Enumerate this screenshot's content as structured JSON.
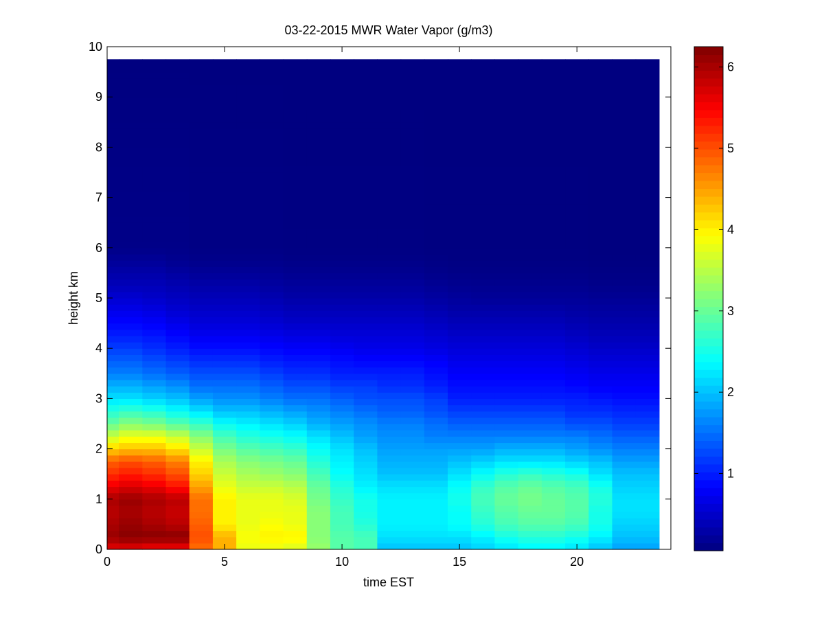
{
  "chart_data": {
    "type": "heatmap",
    "title": "03-22-2015 MWR Water Vapor (g/m3)",
    "xlabel": "time EST",
    "ylabel": "height km",
    "xlim": [
      0,
      24
    ],
    "ylim": [
      0,
      10
    ],
    "xticks": [
      "0",
      "5",
      "10",
      "15",
      "20"
    ],
    "yticks": [
      "0",
      "1",
      "2",
      "3",
      "4",
      "5",
      "6",
      "7",
      "8",
      "9",
      "10"
    ],
    "colorbar": {
      "colormap": "jet",
      "range": [
        0.05,
        6.25
      ],
      "ticks": [
        "1",
        "2",
        "3",
        "4",
        "5",
        "6"
      ]
    },
    "x": [
      0,
      1,
      2,
      3,
      4,
      5,
      6,
      7,
      8,
      9,
      10,
      11,
      12,
      13,
      14,
      15,
      16,
      17,
      18,
      19,
      20,
      21,
      22,
      23
    ],
    "x_range": [
      0,
      23.5
    ],
    "height_top_km": 9.75,
    "profile_heights_km": [
      0,
      0.25,
      0.5,
      0.75,
      1.0,
      1.25,
      1.5,
      1.75,
      2.0,
      2.25,
      2.5,
      2.75,
      3.0,
      3.25,
      3.5,
      3.75,
      4.0,
      4.25,
      4.5,
      4.75,
      5.0,
      5.25,
      5.5,
      5.75,
      6.0,
      10.0
    ],
    "profiles_g_m3": [
      [
        5.6,
        6.1,
        6.0,
        5.9,
        6.0,
        5.6,
        5.2,
        4.9,
        4.2,
        3.6,
        3.0,
        2.6,
        2.2,
        1.9,
        1.6,
        1.4,
        1.2,
        1.0,
        0.85,
        0.7,
        0.55,
        0.4,
        0.3,
        0.2,
        0.1,
        0.05
      ],
      [
        5.6,
        6.2,
        6.1,
        6.0,
        6.1,
        5.7,
        5.3,
        5.0,
        4.3,
        3.8,
        3.2,
        2.7,
        2.2,
        1.9,
        1.6,
        1.4,
        1.2,
        1.0,
        0.85,
        0.7,
        0.55,
        0.4,
        0.3,
        0.2,
        0.1,
        0.05
      ],
      [
        5.5,
        6.2,
        6.0,
        5.9,
        6.0,
        5.6,
        5.2,
        4.9,
        4.3,
        3.8,
        3.1,
        2.6,
        2.1,
        1.8,
        1.5,
        1.3,
        1.1,
        0.95,
        0.8,
        0.65,
        0.5,
        0.4,
        0.3,
        0.2,
        0.1,
        0.05
      ],
      [
        5.5,
        6.2,
        5.9,
        5.8,
        5.9,
        5.4,
        5.0,
        4.7,
        4.1,
        3.6,
        2.9,
        2.4,
        2.0,
        1.7,
        1.4,
        1.2,
        1.0,
        0.85,
        0.7,
        0.55,
        0.45,
        0.35,
        0.25,
        0.15,
        0.1,
        0.05
      ],
      [
        4.8,
        5.0,
        4.9,
        4.8,
        4.8,
        4.5,
        4.2,
        4.0,
        3.6,
        3.2,
        2.7,
        2.2,
        1.8,
        1.5,
        1.3,
        1.1,
        0.9,
        0.75,
        0.6,
        0.5,
        0.4,
        0.3,
        0.2,
        0.12,
        0.08,
        0.05
      ],
      [
        4.4,
        4.4,
        4.0,
        4.0,
        4.0,
        3.8,
        3.6,
        3.4,
        3.1,
        2.8,
        2.4,
        2.0,
        1.7,
        1.5,
        1.3,
        1.1,
        0.9,
        0.75,
        0.6,
        0.5,
        0.4,
        0.3,
        0.2,
        0.12,
        0.08,
        0.05
      ],
      [
        3.8,
        3.9,
        3.8,
        3.8,
        3.8,
        3.6,
        3.4,
        3.2,
        2.9,
        2.6,
        2.3,
        2.0,
        1.7,
        1.5,
        1.3,
        1.1,
        0.9,
        0.75,
        0.6,
        0.5,
        0.4,
        0.3,
        0.2,
        0.12,
        0.08,
        0.05
      ],
      [
        3.8,
        4.0,
        3.9,
        3.8,
        3.8,
        3.6,
        3.3,
        3.1,
        2.8,
        2.5,
        2.2,
        1.9,
        1.6,
        1.4,
        1.2,
        1.0,
        0.85,
        0.7,
        0.55,
        0.45,
        0.35,
        0.25,
        0.18,
        0.12,
        0.08,
        0.05
      ],
      [
        3.7,
        4.0,
        3.8,
        3.8,
        3.7,
        3.5,
        3.2,
        3.0,
        2.7,
        2.4,
        2.1,
        1.8,
        1.5,
        1.3,
        1.1,
        0.95,
        0.8,
        0.65,
        0.5,
        0.4,
        0.3,
        0.22,
        0.15,
        0.1,
        0.07,
        0.05
      ],
      [
        3.3,
        3.2,
        3.2,
        3.2,
        3.1,
        3.0,
        2.8,
        2.6,
        2.4,
        2.2,
        1.9,
        1.7,
        1.5,
        1.3,
        1.1,
        0.95,
        0.8,
        0.65,
        0.5,
        0.4,
        0.3,
        0.22,
        0.15,
        0.1,
        0.07,
        0.05
      ],
      [
        2.9,
        2.9,
        2.8,
        2.8,
        2.7,
        2.6,
        2.4,
        2.3,
        2.2,
        2.0,
        1.8,
        1.6,
        1.4,
        1.2,
        1.0,
        0.9,
        0.75,
        0.6,
        0.5,
        0.4,
        0.3,
        0.22,
        0.15,
        0.1,
        0.07,
        0.05
      ],
      [
        2.8,
        2.8,
        2.6,
        2.5,
        2.5,
        2.3,
        2.2,
        2.1,
        2.0,
        1.8,
        1.7,
        1.5,
        1.3,
        1.2,
        1.0,
        0.85,
        0.7,
        0.6,
        0.5,
        0.4,
        0.3,
        0.22,
        0.15,
        0.1,
        0.07,
        0.05
      ],
      [
        2.0,
        2.2,
        2.3,
        2.3,
        2.3,
        2.2,
        2.0,
        1.9,
        1.8,
        1.7,
        1.6,
        1.4,
        1.3,
        1.1,
        1.0,
        0.85,
        0.7,
        0.6,
        0.5,
        0.4,
        0.3,
        0.22,
        0.15,
        0.1,
        0.07,
        0.05
      ],
      [
        2.0,
        2.2,
        2.3,
        2.3,
        2.3,
        2.2,
        2.0,
        1.9,
        1.8,
        1.7,
        1.6,
        1.4,
        1.3,
        1.1,
        1.0,
        0.85,
        0.7,
        0.6,
        0.5,
        0.4,
        0.3,
        0.22,
        0.15,
        0.1,
        0.07,
        0.05
      ],
      [
        2.0,
        2.2,
        2.3,
        2.3,
        2.3,
        2.2,
        2.0,
        1.9,
        1.8,
        1.6,
        1.5,
        1.3,
        1.2,
        1.0,
        0.9,
        0.8,
        0.65,
        0.55,
        0.45,
        0.35,
        0.25,
        0.18,
        0.12,
        0.08,
        0.06,
        0.05
      ],
      [
        2.0,
        2.2,
        2.4,
        2.4,
        2.5,
        2.4,
        2.2,
        2.0,
        1.8,
        1.6,
        1.4,
        1.2,
        1.0,
        0.9,
        0.8,
        0.7,
        0.6,
        0.5,
        0.4,
        0.3,
        0.22,
        0.15,
        0.1,
        0.07,
        0.06,
        0.05
      ],
      [
        2.1,
        2.3,
        2.6,
        2.7,
        2.8,
        2.7,
        2.4,
        2.1,
        1.8,
        1.6,
        1.4,
        1.2,
        1.0,
        0.9,
        0.8,
        0.7,
        0.6,
        0.5,
        0.4,
        0.3,
        0.2,
        0.14,
        0.1,
        0.07,
        0.06,
        0.05
      ],
      [
        2.2,
        2.5,
        2.8,
        2.9,
        3.0,
        2.9,
        2.6,
        2.2,
        1.9,
        1.6,
        1.4,
        1.2,
        1.0,
        0.9,
        0.8,
        0.7,
        0.6,
        0.5,
        0.4,
        0.3,
        0.2,
        0.14,
        0.1,
        0.07,
        0.06,
        0.05
      ],
      [
        2.3,
        2.6,
        2.9,
        3.0,
        3.1,
        3.0,
        2.7,
        2.2,
        1.9,
        1.6,
        1.4,
        1.2,
        1.0,
        0.9,
        0.8,
        0.7,
        0.6,
        0.5,
        0.4,
        0.3,
        0.2,
        0.14,
        0.1,
        0.07,
        0.06,
        0.05
      ],
      [
        2.3,
        2.6,
        2.9,
        3.0,
        3.0,
        2.9,
        2.6,
        2.2,
        1.9,
        1.6,
        1.4,
        1.2,
        1.0,
        0.9,
        0.8,
        0.7,
        0.6,
        0.5,
        0.4,
        0.3,
        0.2,
        0.14,
        0.1,
        0.07,
        0.06,
        0.05
      ],
      [
        2.2,
        2.5,
        2.8,
        2.9,
        2.9,
        2.8,
        2.5,
        2.1,
        1.8,
        1.6,
        1.3,
        1.1,
        1.0,
        0.85,
        0.75,
        0.65,
        0.55,
        0.45,
        0.35,
        0.27,
        0.2,
        0.14,
        0.1,
        0.07,
        0.06,
        0.05
      ],
      [
        2.0,
        2.3,
        2.5,
        2.5,
        2.6,
        2.5,
        2.2,
        2.0,
        1.7,
        1.5,
        1.3,
        1.1,
        0.95,
        0.8,
        0.7,
        0.6,
        0.5,
        0.4,
        0.32,
        0.25,
        0.18,
        0.12,
        0.08,
        0.06,
        0.05,
        0.05
      ],
      [
        1.8,
        2.0,
        2.1,
        2.2,
        2.2,
        2.1,
        2.0,
        1.8,
        1.6,
        1.4,
        1.2,
        1.05,
        0.9,
        0.8,
        0.7,
        0.6,
        0.5,
        0.4,
        0.32,
        0.25,
        0.18,
        0.12,
        0.08,
        0.06,
        0.05,
        0.05
      ],
      [
        1.8,
        2.0,
        2.1,
        2.2,
        2.2,
        2.1,
        2.0,
        1.8,
        1.6,
        1.4,
        1.2,
        1.05,
        0.9,
        0.8,
        0.7,
        0.6,
        0.5,
        0.4,
        0.32,
        0.25,
        0.18,
        0.12,
        0.08,
        0.06,
        0.05,
        0.05
      ]
    ]
  }
}
